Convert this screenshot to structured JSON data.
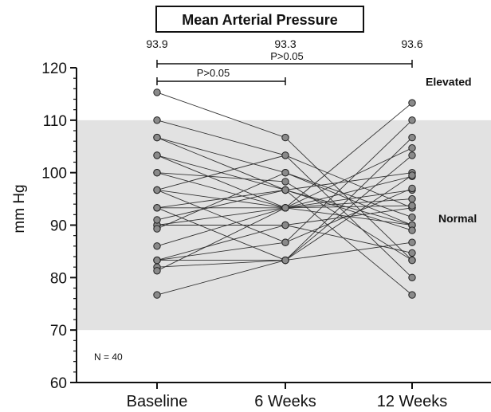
{
  "chart_data": {
    "type": "line",
    "title": "Mean Arterial Pressure",
    "ylabel": "mm Hg",
    "xlabel": "",
    "categories": [
      "Baseline",
      "6 Weeks",
      "12 Weeks"
    ],
    "ylim": [
      60,
      120
    ],
    "yticks": [
      60,
      70,
      80,
      90,
      100,
      110,
      120
    ],
    "grid": false,
    "means": [
      "93.9",
      "93.3",
      "93.6"
    ],
    "comparisons": [
      {
        "from": "Baseline",
        "to": "6 Weeks",
        "label": "P>0.05"
      },
      {
        "from": "Baseline",
        "to": "12 Weeks",
        "label": "P>0.05"
      }
    ],
    "bands": [
      {
        "label": "Normal",
        "range": [
          70,
          110
        ]
      },
      {
        "label": "Elevated",
        "range": [
          110,
          120
        ]
      }
    ],
    "note": "N = 40",
    "series": [
      {
        "values": [
          115.3,
          106.7,
          83.3
        ]
      },
      {
        "values": [
          110,
          103.3,
          80
        ]
      },
      {
        "values": [
          106.7,
          96.7,
          76.7
        ]
      },
      {
        "values": [
          106.7,
          100,
          90
        ]
      },
      {
        "values": [
          103.3,
          93.3,
          113.3
        ]
      },
      {
        "values": [
          103.3,
          96.7,
          100
        ]
      },
      {
        "values": [
          100,
          98.3,
          83.3
        ]
      },
      {
        "values": [
          100,
          93.3,
          96.7
        ]
      },
      {
        "values": [
          96.7,
          93.3,
          90
        ]
      },
      {
        "values": [
          96.7,
          86.7,
          110
        ]
      },
      {
        "values": [
          96.7,
          103.3,
          93.3
        ]
      },
      {
        "values": [
          93.3,
          83.3,
          106.7
        ]
      },
      {
        "values": [
          93.3,
          93.3,
          95
        ]
      },
      {
        "values": [
          93.3,
          96.7,
          90
        ]
      },
      {
        "values": [
          90,
          90,
          93.3
        ]
      },
      {
        "values": [
          90,
          93.3,
          104.7
        ]
      },
      {
        "values": [
          91,
          96.7,
          89
        ]
      },
      {
        "values": [
          89.3,
          100,
          91.5
        ]
      },
      {
        "values": [
          86,
          93.3,
          99.3
        ]
      },
      {
        "values": [
          83.3,
          83.3,
          103.3
        ]
      },
      {
        "values": [
          83.3,
          86.7,
          97
        ]
      },
      {
        "values": [
          83.3,
          90,
          84.7
        ]
      },
      {
        "values": [
          82,
          83.3,
          99.5
        ]
      },
      {
        "values": [
          81.3,
          93.3,
          93.7
        ]
      },
      {
        "values": [
          76.7,
          83.3,
          86.7
        ]
      }
    ]
  }
}
